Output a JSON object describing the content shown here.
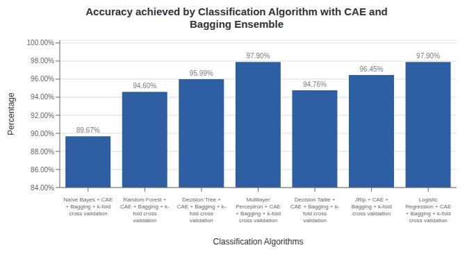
{
  "chart_data": {
    "type": "bar",
    "title": "Accuracy achieved by Classification Algorithm with CAE and\nBagging Ensemble",
    "xlabel": "Classification Algorithms",
    "ylabel": "Percentage",
    "categories": [
      "Naïve Bayes + CAE\n+ Bagging + k-fold\ncross validation",
      "Random Forest +\nCAE + Bagging + k-\nfold cross\nvalidation",
      "Decision Tree +\nCAE + Bagging + k-\nfold cross\nvalidation",
      "Multilayer\nPerceptron + CAE\n+ Bagging + k-fold\ncross validation",
      "Decision Table +\nCAE + Bagging + k-\nfold cross\nvalidation",
      "JRip + CAE +\nBagging + k-fold\ncross validation",
      "Logistic\nRegression + CAE\n+ Bagging + k-fold\ncross validation"
    ],
    "values": [
      89.67,
      94.6,
      95.99,
      97.9,
      94.76,
      96.45,
      97.9
    ],
    "value_labels": [
      "89.67%",
      "94.60%",
      "95.99%",
      "97.90%",
      "94.76%",
      "96.45%",
      "97.90%"
    ],
    "color": "#2E5FA3",
    "ylim": [
      84,
      100.3
    ],
    "yticks": [
      {
        "value": 84,
        "label": "84.00%"
      },
      {
        "value": 86,
        "label": "86.00%"
      },
      {
        "value": 88,
        "label": "88.00%"
      },
      {
        "value": 90,
        "label": "90.00%"
      },
      {
        "value": 92,
        "label": "92.00%"
      },
      {
        "value": 94,
        "label": "94.00%"
      },
      {
        "value": 96,
        "label": "96.00%"
      },
      {
        "value": 98,
        "label": "98.00%"
      },
      {
        "value": 100,
        "label": "100.00%"
      }
    ],
    "grid": true,
    "data_labels": true
  }
}
